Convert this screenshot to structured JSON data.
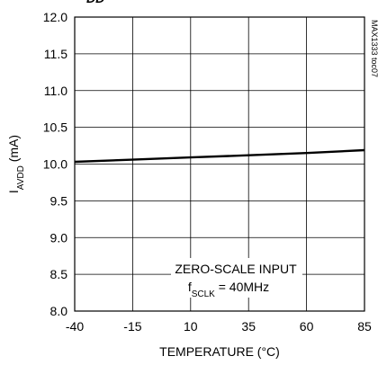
{
  "chart_data": {
    "type": "line",
    "title": "",
    "xlabel": "TEMPERATURE (°C)",
    "ylabel": {
      "main": "I",
      "sub": "AVDD",
      "unit": " (mA)"
    },
    "xlim": [
      -40,
      85
    ],
    "ylim": [
      8.0,
      12.0
    ],
    "x_ticks": [
      -40,
      -15,
      10,
      35,
      60,
      85
    ],
    "x_tick_labels": [
      "-40",
      "-15",
      "10",
      "35",
      "60",
      "85"
    ],
    "y_ticks": [
      8.0,
      8.5,
      9.0,
      9.5,
      10.0,
      10.5,
      11.0,
      11.5,
      12.0
    ],
    "y_tick_labels": [
      "8.0",
      "8.5",
      "9.0",
      "9.5",
      "10.0",
      "10.5",
      "11.0",
      "11.5",
      "12.0"
    ],
    "grid": true,
    "series": [
      {
        "x": [
          -40,
          -15,
          10,
          35,
          60,
          85
        ],
        "y": [
          10.03,
          10.06,
          10.09,
          10.12,
          10.15,
          10.19
        ]
      }
    ],
    "annotation": {
      "line1": "ZERO-SCALE INPUT",
      "line2_main": "f",
      "line2_sub": "SCLK",
      "line2_rest": " = 40MHz"
    },
    "watermark": "MAX1333 toc07",
    "top_clipped_label": "DD"
  }
}
